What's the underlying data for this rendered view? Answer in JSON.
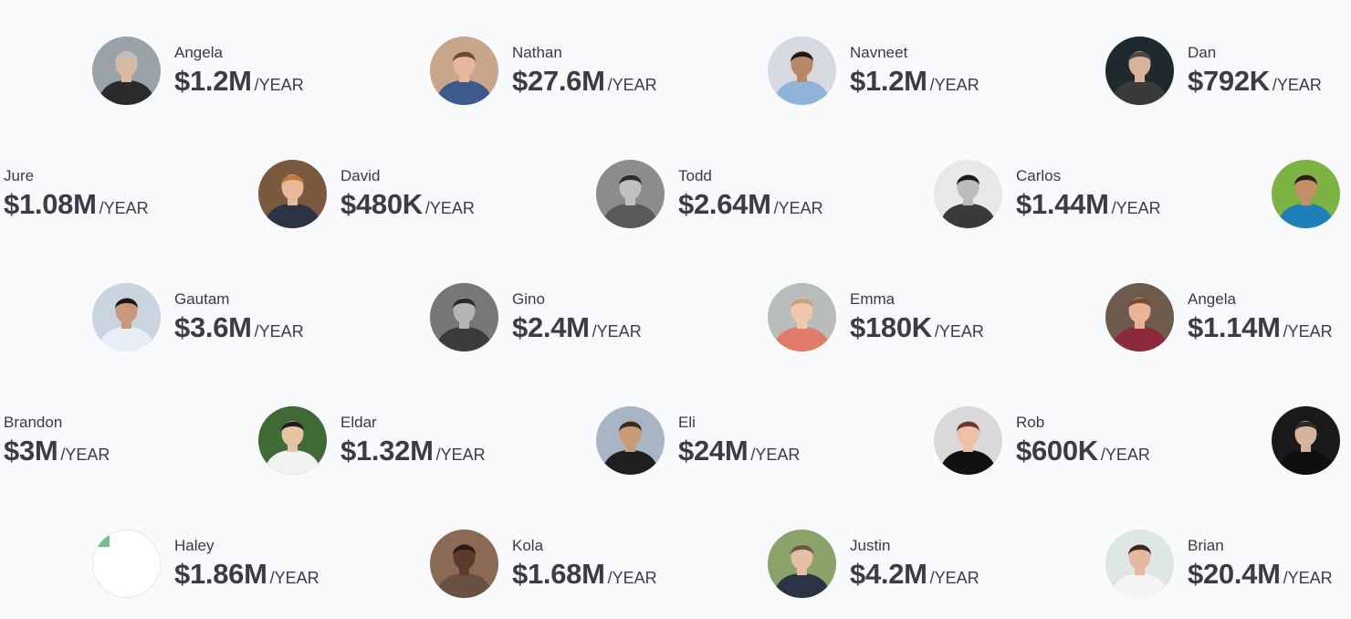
{
  "per_label": "/YEAR",
  "rows": [
    [
      {
        "name": "Angela",
        "amount": "$1.2M",
        "skin": "#d8b9a2",
        "hair": "#bdbdbd",
        "shirt": "#2a2a2a",
        "bg": "#9aa3a8"
      },
      {
        "name": "Nathan",
        "amount": "$27.6M",
        "skin": "#e4b89c",
        "hair": "#6b4a2f",
        "shirt": "#3d5a8c",
        "bg": "#c9a58a"
      },
      {
        "name": "Navneet",
        "amount": "$1.2M",
        "skin": "#b88766",
        "hair": "#1f1a17",
        "shirt": "#8fb3d9",
        "bg": "#d6d9e0"
      },
      {
        "name": "Dan",
        "amount": "$792K",
        "skin": "#d9b39b",
        "hair": "#4a4a4a",
        "shirt": "#3a3a3a",
        "bg": "#1e2a2e"
      }
    ],
    [
      {
        "name": "Jure",
        "amount": "$1.08M",
        "skin": "#e0b49a",
        "hair": "#3b2a1f",
        "shirt": "#2f5d8a",
        "bg": "#a8c3d6"
      },
      {
        "name": "David",
        "amount": "$480K",
        "skin": "#e7b89a",
        "hair": "#c07a3c",
        "shirt": "#2b3444",
        "bg": "#7a5a3e"
      },
      {
        "name": "Todd",
        "amount": "$2.64M",
        "skin": "#bfbfbf",
        "hair": "#2e2e2e",
        "shirt": "#5a5a5a",
        "bg": "#8c8c8c"
      },
      {
        "name": "Carlos",
        "amount": "$1.44M",
        "skin": "#bcbcbc",
        "hair": "#1a1a1a",
        "shirt": "#3a3a3a",
        "bg": "#e8e8e8"
      },
      {
        "name": "",
        "amount": "",
        "skin": "#c48e6a",
        "hair": "#2a2015",
        "shirt": "#1f7fb8",
        "bg": "#7cb342"
      }
    ],
    [
      {
        "name": "Gautam",
        "amount": "$3.6M",
        "skin": "#c9977a",
        "hair": "#1c1a18",
        "shirt": "#e8eef5",
        "bg": "#c9d4de"
      },
      {
        "name": "Gino",
        "amount": "$2.4M",
        "skin": "#b5b5b5",
        "hair": "#2a2a2a",
        "shirt": "#3c3c3c",
        "bg": "#777777"
      },
      {
        "name": "Emma",
        "amount": "$180K",
        "skin": "#f0c9ad",
        "hair": "#c8a27a",
        "shirt": "#e07a6a",
        "bg": "#b9bdb9"
      },
      {
        "name": "Angela",
        "amount": "$1.14M",
        "skin": "#e8b397",
        "hair": "#7a4a2a",
        "shirt": "#8a2a3a",
        "bg": "#6e5b4e"
      }
    ],
    [
      {
        "name": "Brandon",
        "amount": "$3M",
        "skin": "#d8b39b",
        "hair": "#3a2a1f",
        "shirt": "#333333",
        "bg": "#c0c0c0"
      },
      {
        "name": "Eldar",
        "amount": "$1.32M",
        "skin": "#e6c3a4",
        "hair": "#1d1d1d",
        "shirt": "#f2f2f2",
        "bg": "#3f6a35"
      },
      {
        "name": "Eli",
        "amount": "$24M",
        "skin": "#c79a7a",
        "hair": "#3a2a1a",
        "shirt": "#1f1f1f",
        "bg": "#a7b5c4"
      },
      {
        "name": "Rob",
        "amount": "$600K",
        "skin": "#efc0a8",
        "hair": "#6a3a2a",
        "shirt": "#111111",
        "bg": "#d9d9d9"
      },
      {
        "name": "",
        "amount": "",
        "skin": "#d8b39b",
        "hair": "#2a2a2a",
        "shirt": "#0f0f0f",
        "bg": "#1a1a1a"
      }
    ],
    [
      {
        "name": "Haley",
        "amount": "$1.86M",
        "broken": true
      },
      {
        "name": "Kola",
        "amount": "$1.68M",
        "skin": "#5a3a2a",
        "hair": "#2a1d14",
        "shirt": "#6a5040",
        "bg": "#8a6a55"
      },
      {
        "name": "Justin",
        "amount": "$4.2M",
        "skin": "#e6c0a6",
        "hair": "#6b5a3d",
        "shirt": "#2b3444",
        "bg": "#8aa36a"
      },
      {
        "name": "Brian",
        "amount": "$20.4M",
        "skin": "#e6b8a0",
        "hair": "#3a2a1f",
        "shirt": "#f4f4f4",
        "bg": "#dfe6e6"
      }
    ]
  ]
}
